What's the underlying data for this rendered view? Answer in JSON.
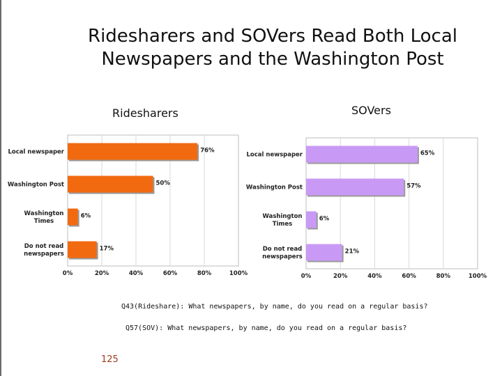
{
  "slide": {
    "title_line1": "Ridesharers and SOVers Read Both Local",
    "title_line2": "Newspapers and the Washington Post",
    "page_number": "125",
    "question_rideshare": "Q43(Rideshare): What newspapers, by name, do you read on a regular basis?",
    "question_sov": "Q57(SOV): What newspapers, by name, do you read on a regular basis?"
  },
  "chart_data": [
    {
      "type": "bar",
      "orientation": "horizontal",
      "title": "Ridesharers",
      "categories": [
        [
          "Local newspaper"
        ],
        [
          "Washington Post"
        ],
        [
          "Washington",
          "Times"
        ],
        [
          "Do not read",
          "newspapers"
        ]
      ],
      "values": [
        76,
        50,
        6,
        17
      ],
      "value_labels": [
        "76%",
        "50%",
        "6%",
        "17%"
      ],
      "xlim": [
        0,
        100
      ],
      "x_ticks": [
        "0%",
        "20%",
        "40%",
        "60%",
        "80%",
        "100%"
      ],
      "bar_color": "#f26a10",
      "grid": true
    },
    {
      "type": "bar",
      "orientation": "horizontal",
      "title": "SOVers",
      "categories": [
        [
          "Local newspaper"
        ],
        [
          "Washington Post"
        ],
        [
          "Washington",
          "Times"
        ],
        [
          "Do not read",
          "newspapers"
        ]
      ],
      "values": [
        65,
        57,
        6,
        21
      ],
      "value_labels": [
        "65%",
        "57%",
        "6%",
        "21%"
      ],
      "xlim": [
        0,
        100
      ],
      "x_ticks": [
        "0%",
        "20%",
        "40%",
        "60%",
        "80%",
        "100%"
      ],
      "bar_color": "#c99af5",
      "grid": true
    }
  ]
}
